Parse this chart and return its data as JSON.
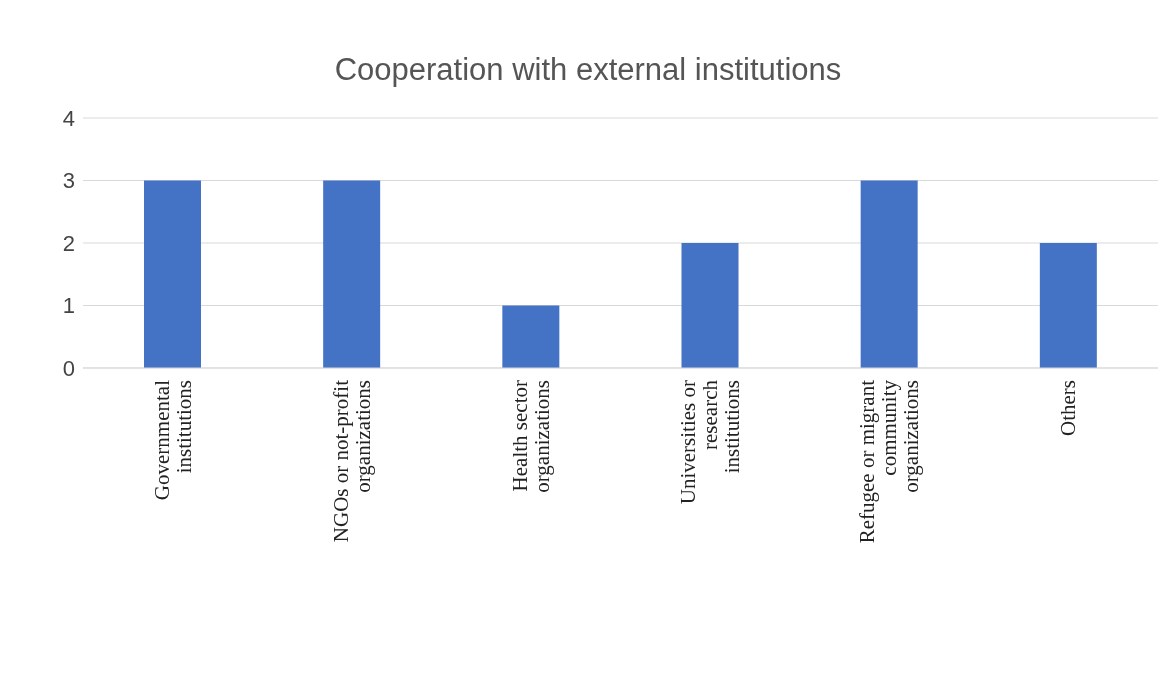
{
  "chart_data": {
    "type": "bar",
    "title": "Cooperation with external institutions",
    "categories": [
      "Governmental institutions",
      "NGOs or not-profit organizations",
      "Health sector organizations",
      "Universities or research institutions",
      "Refugee or migrant community organizations",
      "Others"
    ],
    "values": [
      3,
      3,
      1,
      2,
      3,
      2
    ],
    "color": "#4472c4",
    "ylim": [
      0,
      4
    ],
    "yticks": [
      0,
      1,
      2,
      3,
      4
    ],
    "grid": "y",
    "legend": false
  }
}
